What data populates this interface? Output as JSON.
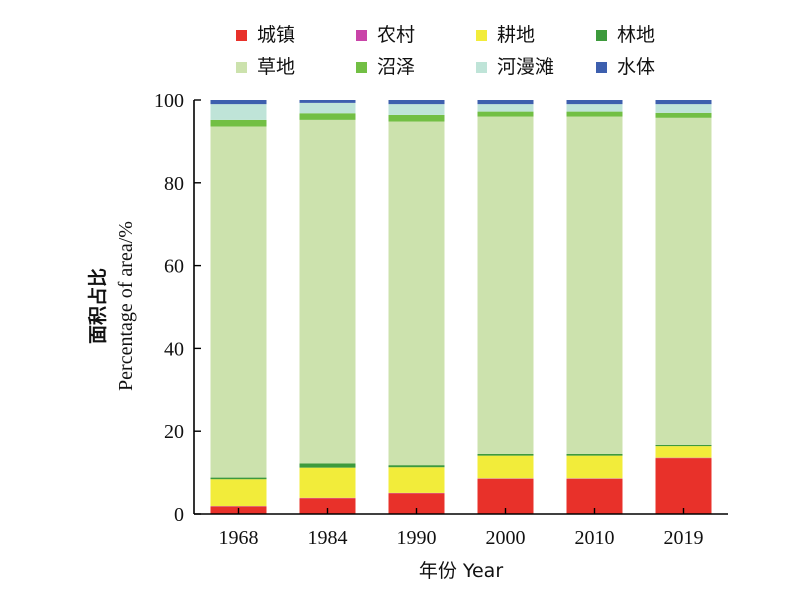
{
  "chart_data": {
    "type": "bar",
    "stacked": true,
    "categories": [
      "1968",
      "1984",
      "1990",
      "2000",
      "2010",
      "2019"
    ],
    "series": [
      {
        "name": "城镇",
        "color": "#e8312a",
        "values": [
          1.8,
          3.8,
          5.0,
          8.5,
          8.5,
          13.5
        ]
      },
      {
        "name": "农村",
        "color": "#c944a8",
        "values": [
          0.1,
          0.1,
          0.1,
          0.1,
          0.1,
          0.1
        ]
      },
      {
        "name": "耕地",
        "color": "#f2ec3a",
        "values": [
          6.5,
          7.3,
          6.2,
          5.5,
          5.5,
          2.8
        ]
      },
      {
        "name": "林地",
        "color": "#3d9a3c",
        "values": [
          0.4,
          1.0,
          0.5,
          0.4,
          0.4,
          0.3
        ]
      },
      {
        "name": "草地",
        "color": "#cce2ad",
        "values": [
          84.8,
          83.0,
          83.0,
          81.5,
          81.5,
          79.0
        ]
      },
      {
        "name": "沼泽",
        "color": "#72bf44",
        "values": [
          1.6,
          1.6,
          1.6,
          1.2,
          1.2,
          1.2
        ]
      },
      {
        "name": "河漫滩",
        "color": "#bfe4d8",
        "values": [
          3.8,
          2.5,
          2.6,
          1.8,
          1.8,
          2.1
        ]
      },
      {
        "name": "水体",
        "color": "#3d5fae",
        "values": [
          1.0,
          0.7,
          1.0,
          1.0,
          1.0,
          1.0
        ]
      }
    ],
    "ylim": [
      0,
      100
    ],
    "yticks": [
      0,
      20,
      40,
      60,
      80,
      100
    ],
    "ytick_labels": [
      "0",
      "20",
      "40",
      "60",
      "80",
      "100"
    ],
    "xlabel": "年份 Year",
    "ylabel_cn": "面积占比",
    "ylabel_en": "Percentage of area/%",
    "legend_position": "top",
    "grid": false
  }
}
